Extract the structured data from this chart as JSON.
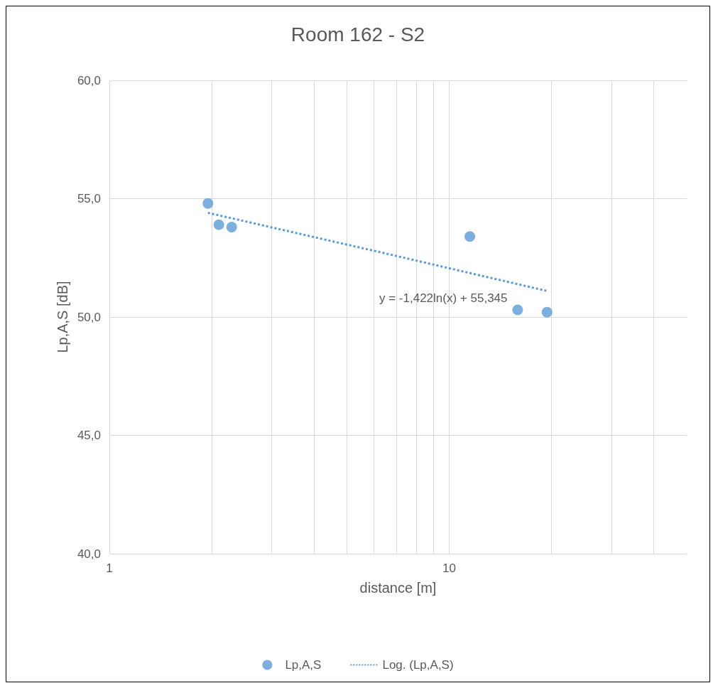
{
  "chart_data": {
    "type": "scatter",
    "title": "Room 162 - S2",
    "xlabel": "distance [m]",
    "ylabel": "Lp,A,S [dB]",
    "log": "x",
    "xlim": [
      1,
      50
    ],
    "ylim": [
      40,
      60
    ],
    "xticks": [
      1,
      {
        "value": 2,
        "label": null
      },
      {
        "value": 3,
        "label": null
      },
      {
        "value": 4,
        "label": null
      },
      {
        "value": 5,
        "label": null
      },
      {
        "value": 6,
        "label": null
      },
      {
        "value": 7,
        "label": null
      },
      {
        "value": 8,
        "label": null
      },
      {
        "value": 9,
        "label": null
      },
      10,
      {
        "value": 20,
        "label": null
      },
      {
        "value": 30,
        "label": null
      },
      {
        "value": 40,
        "label": null
      }
    ],
    "yticks": [
      {
        "value": 40,
        "label": "40,0"
      },
      {
        "value": 45,
        "label": "45,0"
      },
      {
        "value": 50,
        "label": "50,0"
      },
      {
        "value": 55,
        "label": "55,0"
      },
      {
        "value": 60,
        "label": "60,0"
      }
    ],
    "grid": true,
    "legend": "bottom",
    "marker": "circle",
    "series": [
      {
        "name": "Lp,A,S",
        "color": "#5b9bd5",
        "x": [
          1.95,
          2.1,
          2.29,
          11.5,
          15.9,
          19.4
        ],
        "values": [
          54.8,
          53.9,
          53.8,
          53.4,
          50.3,
          50.2
        ]
      },
      {
        "name": "Log. (Lp,A,S)",
        "type": "line",
        "color": "#5b9bd5",
        "line_style": "dotted",
        "marker": "none",
        "x": [
          1.95,
          6,
          19.4
        ],
        "values": [
          54.4,
          52.8,
          51.1
        ]
      }
    ],
    "annotations": [
      "y = -1,422ln(x) + 55,345"
    ]
  }
}
